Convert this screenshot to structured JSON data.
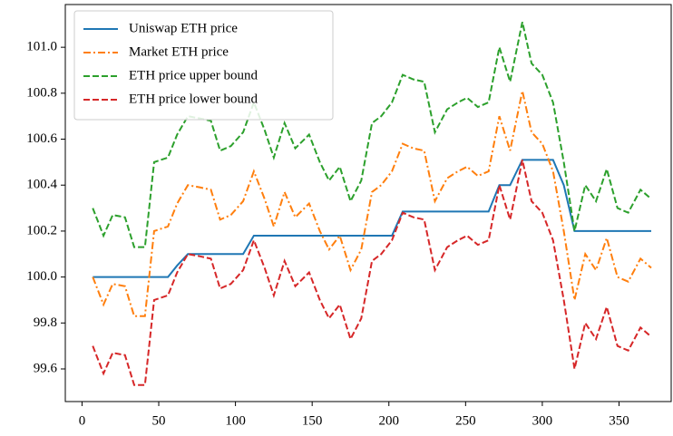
{
  "chart_data": {
    "type": "line",
    "x": [
      7,
      14,
      20,
      28,
      34,
      41,
      47,
      56,
      62,
      69,
      77,
      84,
      90,
      97,
      105,
      112,
      119,
      125,
      132,
      139,
      148,
      155,
      161,
      168,
      175,
      182,
      189,
      195,
      202,
      209,
      216,
      223,
      230,
      238,
      245,
      251,
      258,
      265,
      272,
      279,
      287,
      293,
      300,
      307,
      314,
      321,
      328,
      335,
      342,
      349,
      356,
      364,
      371
    ],
    "series": [
      {
        "name": "Uniswap ETH price",
        "color": "#1f77b4",
        "dash": "solid",
        "values": [
          100.0,
          100.0,
          100.0,
          100.0,
          100.0,
          100.0,
          100.0,
          100.0,
          100.05,
          100.1,
          100.1,
          100.1,
          100.1,
          100.1,
          100.1,
          100.18,
          100.18,
          100.18,
          100.18,
          100.18,
          100.18,
          100.18,
          100.18,
          100.18,
          100.18,
          100.18,
          100.18,
          100.18,
          100.18,
          100.285,
          100.285,
          100.285,
          100.285,
          100.285,
          100.285,
          100.285,
          100.285,
          100.285,
          100.4,
          100.4,
          100.51,
          100.51,
          100.51,
          100.51,
          100.4,
          100.2,
          100.2,
          100.2,
          100.2,
          100.2,
          100.2,
          100.2,
          100.2
        ]
      },
      {
        "name": "Market ETH price",
        "color": "#ff7f0e",
        "dash": "dashdot",
        "values": [
          100.0,
          99.88,
          99.97,
          99.96,
          99.83,
          99.83,
          100.2,
          100.22,
          100.32,
          100.4,
          100.39,
          100.38,
          100.25,
          100.27,
          100.33,
          100.46,
          100.34,
          100.22,
          100.37,
          100.26,
          100.32,
          100.2,
          100.12,
          100.18,
          100.03,
          100.12,
          100.37,
          100.4,
          100.46,
          100.58,
          100.56,
          100.55,
          100.33,
          100.43,
          100.46,
          100.48,
          100.44,
          100.46,
          100.7,
          100.55,
          100.81,
          100.63,
          100.58,
          100.46,
          100.2,
          99.9,
          100.1,
          100.03,
          100.17,
          100.0,
          99.98,
          100.08,
          100.04
        ]
      },
      {
        "name": "ETH price upper bound",
        "color": "#2ca02c",
        "dash": "dashed",
        "values": [
          100.3,
          100.18,
          100.27,
          100.26,
          100.13,
          100.13,
          100.5,
          100.52,
          100.62,
          100.7,
          100.69,
          100.68,
          100.55,
          100.57,
          100.63,
          100.76,
          100.64,
          100.52,
          100.67,
          100.56,
          100.62,
          100.5,
          100.42,
          100.48,
          100.33,
          100.42,
          100.67,
          100.7,
          100.76,
          100.88,
          100.86,
          100.85,
          100.63,
          100.73,
          100.76,
          100.78,
          100.74,
          100.76,
          101.0,
          100.85,
          101.11,
          100.93,
          100.88,
          100.76,
          100.5,
          100.2,
          100.4,
          100.33,
          100.47,
          100.3,
          100.28,
          100.38,
          100.34
        ]
      },
      {
        "name": "ETH price lower bound",
        "color": "#d62728",
        "dash": "dashed",
        "values": [
          99.7,
          99.58,
          99.67,
          99.66,
          99.53,
          99.53,
          99.9,
          99.92,
          100.02,
          100.1,
          100.09,
          100.08,
          99.95,
          99.97,
          100.03,
          100.16,
          100.04,
          99.92,
          100.07,
          99.96,
          100.02,
          99.9,
          99.82,
          99.88,
          99.73,
          99.82,
          100.07,
          100.1,
          100.16,
          100.28,
          100.26,
          100.25,
          100.03,
          100.13,
          100.16,
          100.18,
          100.14,
          100.16,
          100.4,
          100.25,
          100.51,
          100.33,
          100.28,
          100.16,
          99.9,
          99.6,
          99.8,
          99.73,
          99.87,
          99.7,
          99.68,
          99.78,
          99.74
        ]
      }
    ],
    "xlim": [
      -10.9,
      384
    ],
    "xticks": [
      0,
      50,
      100,
      150,
      200,
      250,
      300,
      350
    ],
    "ylim": [
      99.458,
      101.186
    ],
    "yticks": [
      99.6,
      99.8,
      {
        "value": 100.0,
        "label": "100.0"
      },
      100.2,
      100.4,
      100.6,
      100.8,
      {
        "value": 101.0,
        "label": "101.0"
      }
    ],
    "grid": false,
    "legend": "upper left"
  }
}
